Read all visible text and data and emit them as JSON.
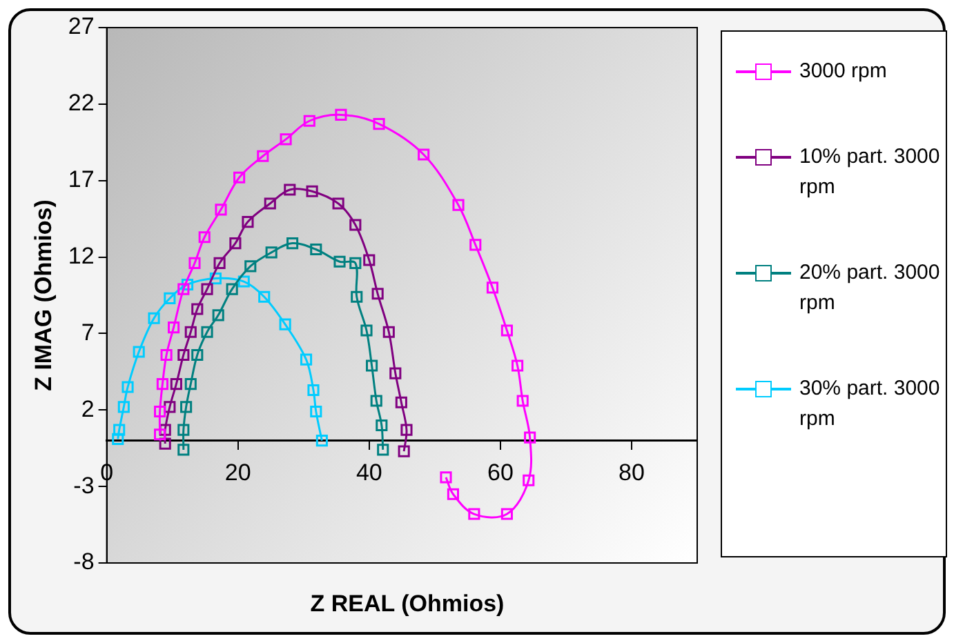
{
  "chart_data": {
    "type": "line",
    "xlabel": "Z REAL (Ohmios)",
    "ylabel": "Z IMAG (Ohmios)",
    "xlim": [
      0,
      90
    ],
    "xticks": [
      0,
      20,
      40,
      60,
      80
    ],
    "ylim": [
      -8,
      27
    ],
    "yticks": [
      -8,
      -3,
      2,
      7,
      12,
      17,
      22,
      27
    ],
    "grid": false,
    "legend": "right",
    "line_style": "solid",
    "series": [
      {
        "name": "3000 rpm",
        "color": "#ff00ff",
        "marker": "square",
        "x": [
          8.1,
          8.1,
          8.5,
          9.1,
          10.2,
          11.7,
          13.4,
          14.9,
          17.4,
          20.2,
          23.8,
          27.3,
          30.9,
          35.7,
          41.5,
          48.3,
          53.6,
          56.2,
          58.8,
          61,
          62.6,
          63.4,
          64.5,
          64.3,
          61,
          56,
          52.8,
          51.7
        ],
        "values": [
          0.4,
          1.9,
          3.7,
          5.6,
          7.4,
          9.9,
          11.6,
          13.3,
          15.1,
          17.2,
          18.6,
          19.7,
          20.9,
          21.3,
          20.7,
          18.7,
          15.4,
          12.8,
          10,
          7.2,
          4.9,
          2.6,
          0.2,
          -2.6,
          -4.8,
          -4.8,
          -3.5,
          -2.4
        ]
      },
      {
        "name": "10% part. 3000 rpm",
        "color": "#800080",
        "marker": "square",
        "x": [
          8.9,
          8.9,
          9.6,
          10.6,
          11.7,
          12.8,
          13.8,
          15.3,
          17.2,
          19.6,
          21.5,
          24.9,
          27.9,
          31.3,
          35.3,
          37.9,
          40,
          41.3,
          43,
          44,
          44.9,
          45.7,
          45.3
        ],
        "values": [
          -0.2,
          0.7,
          2.2,
          3.7,
          5.6,
          7.1,
          8.6,
          9.9,
          11.6,
          12.9,
          14.3,
          15.5,
          16.4,
          16.3,
          15.5,
          14.1,
          11.8,
          9.6,
          7.1,
          4.4,
          2.5,
          0.7,
          -0.7
        ]
      },
      {
        "name": "20% part. 3000 rpm",
        "color": "#008080",
        "marker": "square",
        "x": [
          11.7,
          11.7,
          12.1,
          12.8,
          13.8,
          15.3,
          17,
          19.1,
          21.9,
          25.1,
          28.3,
          31.9,
          35.5,
          37.9,
          38.1,
          39.6,
          40.4,
          41.1,
          41.9,
          42.1
        ],
        "values": [
          -0.6,
          0.7,
          2.2,
          3.7,
          5.6,
          7.1,
          8.2,
          9.9,
          11.4,
          12.3,
          12.9,
          12.5,
          11.7,
          11.6,
          9.4,
          7.2,
          4.9,
          2.6,
          1,
          -0.6
        ]
      },
      {
        "name": "30% part. 3000 rpm",
        "color": "#00ccff",
        "marker": "square",
        "x": [
          1.7,
          1.9,
          2.6,
          3.2,
          4.9,
          7.2,
          9.6,
          12.3,
          16.6,
          20.9,
          24,
          27.2,
          30.4,
          31.5,
          31.9,
          32.8
        ],
        "values": [
          0.1,
          0.7,
          2.2,
          3.5,
          5.8,
          8,
          9.3,
          10.2,
          10.6,
          10.4,
          9.4,
          7.6,
          5.3,
          3.3,
          1.9,
          0
        ]
      }
    ]
  }
}
